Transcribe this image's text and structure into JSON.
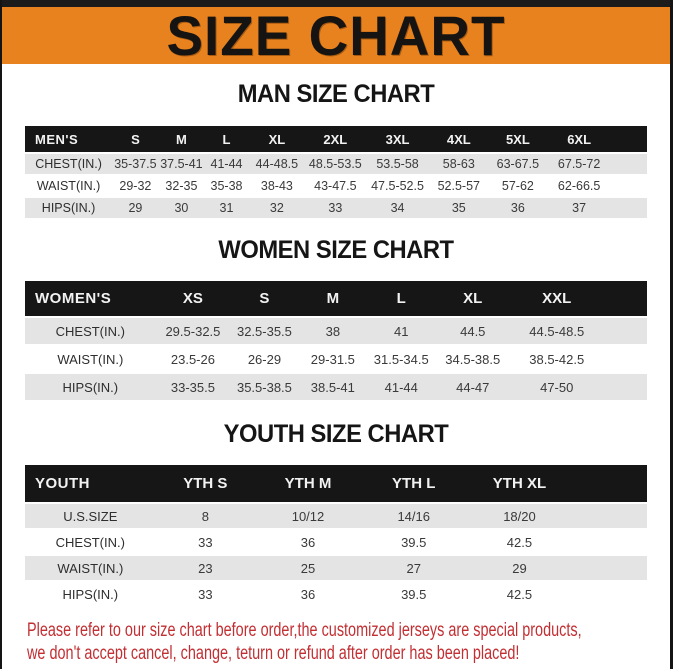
{
  "page": {
    "banner_title": "SIZE CHART",
    "colors": {
      "banner_bg": "#e8821e",
      "banner_text": "#161412",
      "table_header_bg": "#161616",
      "table_header_text": "#f2f2f2",
      "alt_row_bg": "#e4e4e4",
      "note_text": "#c22f33"
    }
  },
  "tables": [
    {
      "title": "MAN SIZE CHART",
      "header": {
        "label": "MEN'S",
        "sizes": [
          "S",
          "M",
          "L",
          "XL",
          "2XL",
          "3XL",
          "4XL",
          "5XL",
          "6XL"
        ]
      },
      "rows": [
        {
          "label": "CHEST(IN.)",
          "values": [
            "35-37.5",
            "37.5-41",
            "41-44",
            "44-48.5",
            "48.5-53.5",
            "53.5-58",
            "58-63",
            "63-67.5",
            "67.5-72"
          ]
        },
        {
          "label": "WAIST(IN.)",
          "values": [
            "29-32",
            "32-35",
            "35-38",
            "38-43",
            "43-47.5",
            "47.5-52.5",
            "52.5-57",
            "57-62",
            "62-66.5"
          ]
        },
        {
          "label": "HIPS(IN.)",
          "values": [
            "29",
            "30",
            "31",
            "32",
            "33",
            "34",
            "35",
            "36",
            "37"
          ]
        }
      ]
    },
    {
      "title": "WOMEN SIZE CHART",
      "header": {
        "label": "WOMEN'S",
        "sizes": [
          "XS",
          "S",
          "M",
          "L",
          "XL",
          "XXL"
        ]
      },
      "rows": [
        {
          "label": "CHEST(IN.)",
          "values": [
            "29.5-32.5",
            "32.5-35.5",
            "38",
            "41",
            "44.5",
            "44.5-48.5"
          ]
        },
        {
          "label": "WAIST(IN.)",
          "values": [
            "23.5-26",
            "26-29",
            "29-31.5",
            "31.5-34.5",
            "34.5-38.5",
            "38.5-42.5"
          ]
        },
        {
          "label": "HIPS(IN.)",
          "values": [
            "33-35.5",
            "35.5-38.5",
            "38.5-41",
            "41-44",
            "44-47",
            "47-50"
          ]
        }
      ]
    },
    {
      "title": "YOUTH SIZE CHART",
      "header": {
        "label": "YOUTH",
        "sizes": [
          "YTH S",
          "YTH M",
          "YTH L",
          "YTH XL"
        ]
      },
      "rows": [
        {
          "label": "U.S.SIZE",
          "values": [
            "8",
            "10/12",
            "14/16",
            "18/20"
          ]
        },
        {
          "label": "CHEST(IN.)",
          "values": [
            "33",
            "36",
            "39.5",
            "42.5"
          ]
        },
        {
          "label": "WAIST(IN.)",
          "values": [
            "23",
            "25",
            "27",
            "29"
          ]
        },
        {
          "label": "HIPS(IN.)",
          "values": [
            "33",
            "36",
            "39.5",
            "42.5"
          ]
        }
      ]
    }
  ],
  "note": {
    "line1": "Please refer to our size chart before order,the customized jerseys are special products,",
    "line2": "we don't accept cancel, change, teturn or refund after order has been placed!"
  }
}
